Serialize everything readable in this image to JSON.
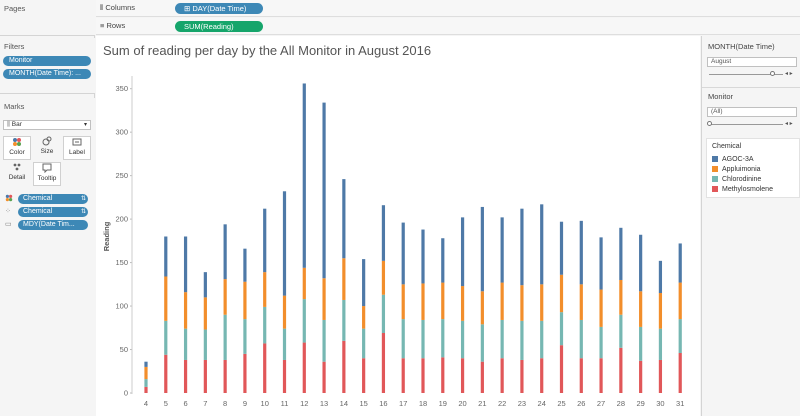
{
  "left": {
    "pages": {
      "title": "Pages"
    },
    "filters": {
      "title": "Filters",
      "pills": [
        "Monitor",
        "MONTH(Date Time): ..."
      ]
    },
    "marks": {
      "title": "Marks",
      "mark_type": "Bar",
      "buttons": [
        "Color",
        "Size",
        "Label",
        "Detail",
        "Tooltip"
      ],
      "pills": [
        {
          "label": "Chemical",
          "icon": "color-dots-icon",
          "sort_icon": "sort-icon"
        },
        {
          "label": "Chemical",
          "icon": "detail-icon",
          "sort_icon": "sort-icon"
        },
        {
          "label": "MDY(Date Tim...",
          "icon": "tooltip-icon",
          "sort_icon": ""
        }
      ]
    }
  },
  "shelves": {
    "columns": {
      "label": "Columns",
      "pill": "DAY(Date Time)",
      "color": "#3d88b6"
    },
    "rows": {
      "label": "Rows",
      "pill": "SUM(Reading)",
      "color": "#16a56b"
    }
  },
  "right": {
    "month_filter": {
      "title": "MONTH(Date Time)",
      "value": "August"
    },
    "monitor_filter": {
      "title": "Monitor",
      "value": "(All)"
    },
    "legend": {
      "title": "Chemical",
      "items": [
        {
          "label": "AGOC-3A",
          "color": "#4e79a7"
        },
        {
          "label": "Appluimonia",
          "color": "#f28e2b"
        },
        {
          "label": "Chlorodinine",
          "color": "#76b7b2"
        },
        {
          "label": "Methylosmolene",
          "color": "#e15759"
        }
      ]
    }
  },
  "chart_data": {
    "type": "bar",
    "stacked": true,
    "title": "Sum of reading per day by  the All Monitor in August 2016",
    "ylabel": "Reading",
    "xlabel": "",
    "ylim": [
      0,
      360
    ],
    "yticks": [
      0,
      50,
      100,
      150,
      200,
      250,
      300,
      350
    ],
    "grid": false,
    "legend_position": "right",
    "categories": [
      "4",
      "5",
      "6",
      "7",
      "8",
      "9",
      "10",
      "11",
      "12",
      "13",
      "14",
      "15",
      "16",
      "17",
      "18",
      "19",
      "20",
      "21",
      "22",
      "23",
      "24",
      "25",
      "26",
      "27",
      "28",
      "29",
      "30",
      "31"
    ],
    "series": [
      {
        "name": "Methylosmolene",
        "color": "#e15759",
        "values": [
          7,
          44,
          38,
          38,
          38,
          45,
          57,
          38,
          58,
          36,
          60,
          40,
          69,
          40,
          40,
          41,
          40,
          36,
          40,
          38,
          40,
          55,
          40,
          40,
          52,
          37,
          38,
          46
        ]
      },
      {
        "name": "Chlorodinine",
        "color": "#76b7b2",
        "values": [
          9,
          39,
          36,
          35,
          52,
          40,
          42,
          36,
          50,
          48,
          47,
          34,
          44,
          45,
          44,
          44,
          43,
          43,
          44,
          45,
          43,
          38,
          44,
          36,
          38,
          39,
          36,
          39
        ]
      },
      {
        "name": "Appluimonia",
        "color": "#f28e2b",
        "values": [
          14,
          51,
          42,
          37,
          41,
          43,
          40,
          38,
          36,
          48,
          48,
          26,
          39,
          40,
          42,
          42,
          40,
          38,
          43,
          41,
          42,
          43,
          41,
          43,
          40,
          41,
          41,
          42
        ]
      },
      {
        "name": "AGOC-3A",
        "color": "#4e79a7",
        "values": [
          6,
          46,
          64,
          29,
          63,
          38,
          73,
          120,
          212,
          202,
          91,
          54,
          64,
          71,
          62,
          51,
          79,
          97,
          75,
          88,
          92,
          61,
          73,
          60,
          60,
          65,
          37,
          45
        ]
      }
    ]
  }
}
